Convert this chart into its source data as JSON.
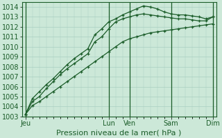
{
  "title": "",
  "xlabel": "Pression niveau de la mer( hPa )",
  "ylabel": "",
  "ylim": [
    1003,
    1014.5
  ],
  "yticks": [
    1003,
    1004,
    1005,
    1006,
    1007,
    1008,
    1009,
    1010,
    1011,
    1012,
    1013,
    1014
  ],
  "background_color": "#cce8d8",
  "grid_color": "#a8cfc0",
  "line_color": "#1a5c28",
  "marker": "+",
  "day_labels": [
    "Jeu",
    "Lun",
    "Ven",
    "Sam",
    "Dim"
  ],
  "day_positions": [
    0,
    12,
    15,
    21,
    27
  ],
  "xlim": [
    -0.5,
    27.5
  ],
  "series": [
    [
      1003.2,
      1004.1,
      1004.5,
      1005.0,
      1005.5,
      1006.0,
      1006.5,
      1007.0,
      1007.5,
      1008.0,
      1008.5,
      1009.0,
      1009.5,
      1010.0,
      1010.5,
      1010.8,
      1011.0,
      1011.2,
      1011.4,
      1011.5,
      1011.6,
      1011.7,
      1011.8,
      1011.9,
      1012.0,
      1012.1,
      1012.2,
      1012.3
    ],
    [
      1003.2,
      1004.5,
      1005.0,
      1005.8,
      1006.5,
      1007.2,
      1007.8,
      1008.3,
      1008.8,
      1009.3,
      1010.5,
      1011.0,
      1011.8,
      1012.5,
      1012.8,
      1013.0,
      1013.2,
      1013.3,
      1013.2,
      1013.1,
      1013.0,
      1012.9,
      1012.8,
      1012.8,
      1012.7,
      1012.6,
      1012.6,
      1013.0
    ],
    [
      1003.2,
      1004.8,
      1005.5,
      1006.2,
      1006.8,
      1007.5,
      1008.2,
      1008.8,
      1009.3,
      1009.8,
      1011.2,
      1011.8,
      1012.5,
      1012.8,
      1013.2,
      1013.5,
      1013.8,
      1014.1,
      1014.0,
      1013.8,
      1013.5,
      1013.3,
      1013.2,
      1013.2,
      1013.1,
      1013.0,
      1012.8,
      1013.0
    ]
  ],
  "vline_color": "#1a5c28",
  "tick_label_color": "#1a5c28",
  "xlabel_color": "#1a5c28",
  "xlabel_fontsize": 8,
  "tick_fontsize": 7,
  "fig_bg": "#cce8d8",
  "linewidth": 0.9,
  "markersize": 3.0,
  "markeredgewidth": 0.9
}
